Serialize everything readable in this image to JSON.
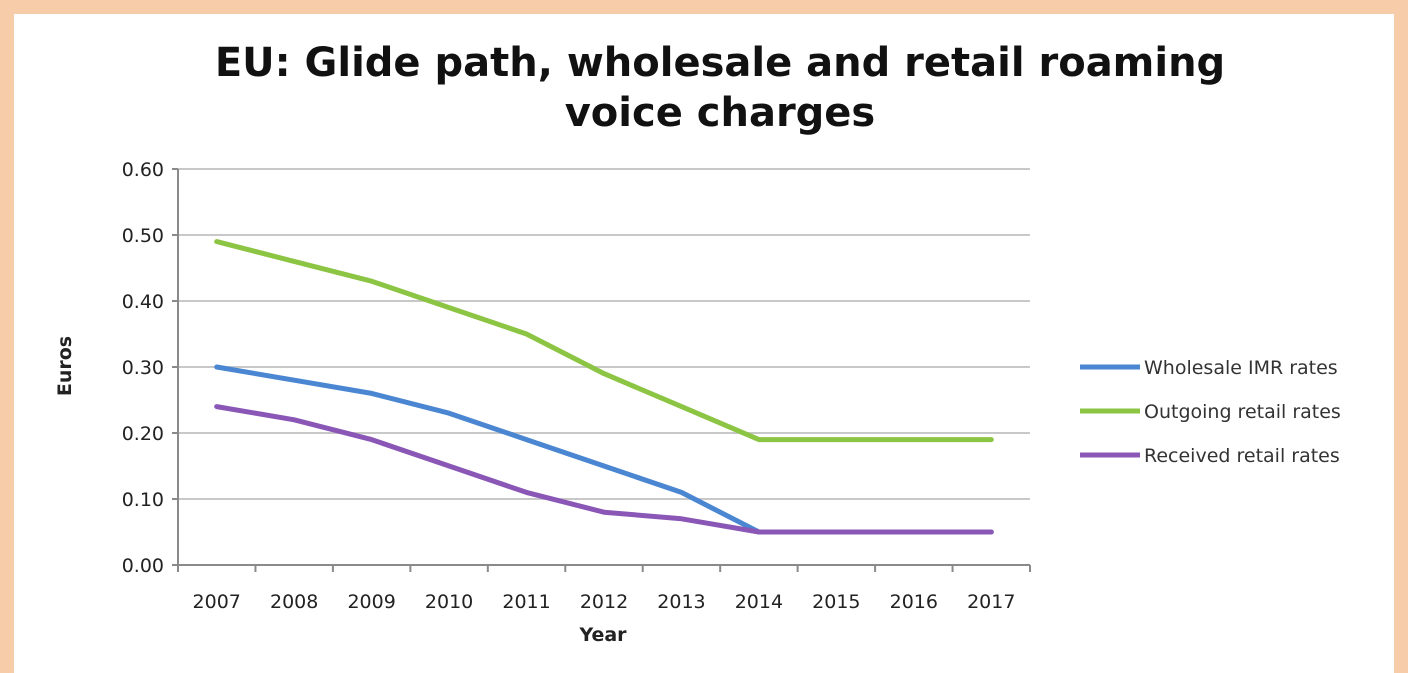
{
  "chart_data": {
    "type": "line",
    "title_line1": "EU: Glide path, wholesale and retail roaming",
    "title_line2": "voice charges",
    "xlabel": "Year",
    "ylabel": "Euros",
    "categories": [
      "2007",
      "2008",
      "2009",
      "2010",
      "2011",
      "2012",
      "2013",
      "2014",
      "2015",
      "2016",
      "2017"
    ],
    "ylim": [
      0,
      0.6
    ],
    "yticks": [
      "0.00",
      "0.10",
      "0.20",
      "0.30",
      "0.40",
      "0.50",
      "0.60"
    ],
    "grid": true,
    "legend_position": "right",
    "series": [
      {
        "name": "Wholesale IMR rates",
        "color": "#4a86d1",
        "values": [
          0.3,
          0.28,
          0.26,
          0.23,
          0.19,
          0.15,
          0.11,
          0.05,
          0.05,
          0.05,
          0.05
        ]
      },
      {
        "name": "Outgoing retail rates",
        "color": "#8cc443",
        "values": [
          0.49,
          0.46,
          0.43,
          0.39,
          0.35,
          0.29,
          0.24,
          0.19,
          0.19,
          0.19,
          0.19
        ]
      },
      {
        "name": "Received retail rates",
        "color": "#8a57b6",
        "values": [
          0.24,
          0.22,
          0.19,
          0.15,
          0.11,
          0.08,
          0.07,
          0.05,
          0.05,
          0.05,
          0.05
        ]
      }
    ]
  }
}
